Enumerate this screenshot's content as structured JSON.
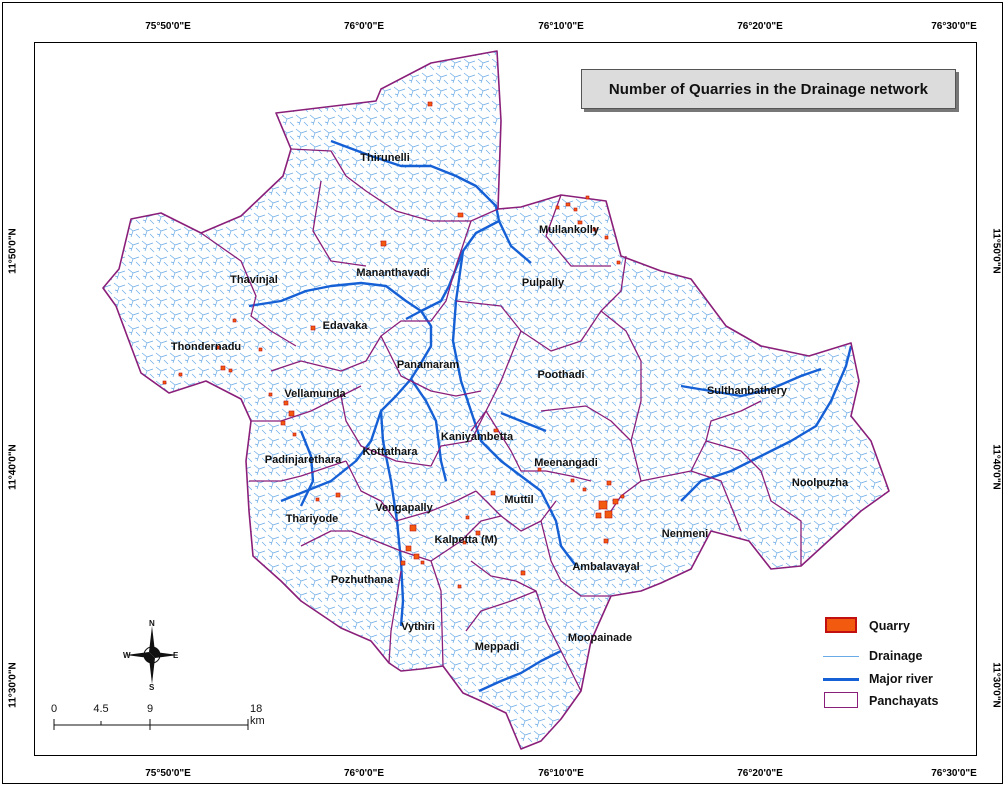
{
  "title": "Number of Quarries in the Drainage network",
  "graticule": {
    "lon_labels": [
      "75°50'0\"E",
      "76°0'0\"E",
      "76°10'0\"E",
      "76°20'0\"E",
      "76°30'0\"E"
    ],
    "lat_labels": [
      "11°50'0\"N",
      "11°40'0\"N",
      "11°30'0\"N"
    ]
  },
  "panchayats": [
    {
      "name": "Thirunelli"
    },
    {
      "name": "Mullankolly"
    },
    {
      "name": "Mananthavadi"
    },
    {
      "name": "Thavinjal"
    },
    {
      "name": "Pulpally"
    },
    {
      "name": "Edavaka"
    },
    {
      "name": "Thondernadu"
    },
    {
      "name": "Panamaram"
    },
    {
      "name": "Poothadi"
    },
    {
      "name": "Sulthanbathery"
    },
    {
      "name": "Vellamunda"
    },
    {
      "name": "Kaniyambetta"
    },
    {
      "name": "Padinjarethara"
    },
    {
      "name": "Kottathara"
    },
    {
      "name": "Meenangadi"
    },
    {
      "name": "Noolpuzha"
    },
    {
      "name": "Muttil"
    },
    {
      "name": "Thariyode"
    },
    {
      "name": "Vengapally"
    },
    {
      "name": "Kalpetta (M)"
    },
    {
      "name": "Nenmeni"
    },
    {
      "name": "Ambalavayal"
    },
    {
      "name": "Pozhuthana"
    },
    {
      "name": "Vythiri"
    },
    {
      "name": "Meppadi"
    },
    {
      "name": "Moopainade"
    }
  ],
  "legend": {
    "quarry": "Quarry",
    "drainage": "Drainage",
    "major_river": "Major river",
    "panchayats": "Panchayats"
  },
  "scale_bar": {
    "labels": [
      "0",
      "4.5",
      "9",
      "18 km"
    ]
  },
  "north_arrow": {
    "n": "N",
    "s": "S",
    "e": "E",
    "w": "W"
  },
  "colors": {
    "quarry_fill": "#f25a0f",
    "quarry_border": "#c21010",
    "drainage": "#6aaae6",
    "major_river": "#1660d6",
    "panchayat_boundary": "#8a1f7a"
  }
}
